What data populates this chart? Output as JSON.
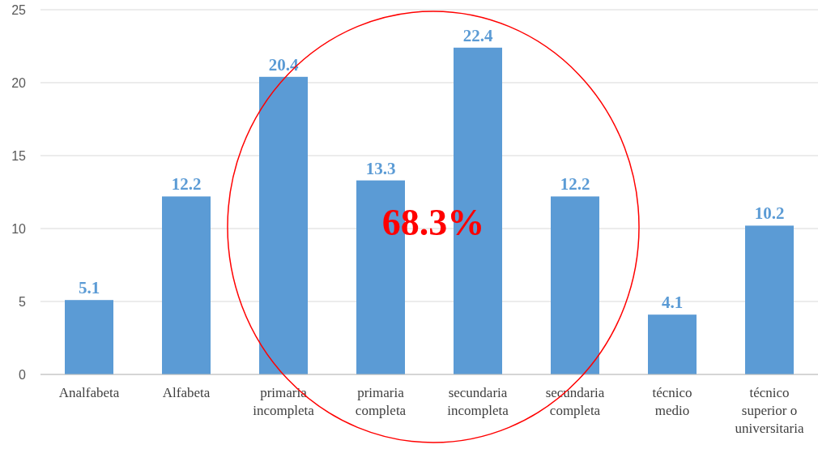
{
  "chart_data": {
    "type": "bar",
    "categories": [
      "Analfabeta",
      "Alfabeta",
      "primaria incompleta",
      "primaria completa",
      "secundaria incompleta",
      "secundaria completa",
      "técnico medio",
      "técnico superior o universitaria"
    ],
    "values": [
      5.1,
      12.2,
      20.4,
      13.3,
      22.4,
      12.2,
      4.1,
      10.2
    ],
    "color": "#5b9bd5",
    "ylim": [
      0,
      25
    ],
    "yticks": [
      0,
      5,
      10,
      15,
      20,
      25
    ],
    "grid": "y",
    "data_labels": true,
    "annotations": [
      "68.3%"
    ]
  }
}
